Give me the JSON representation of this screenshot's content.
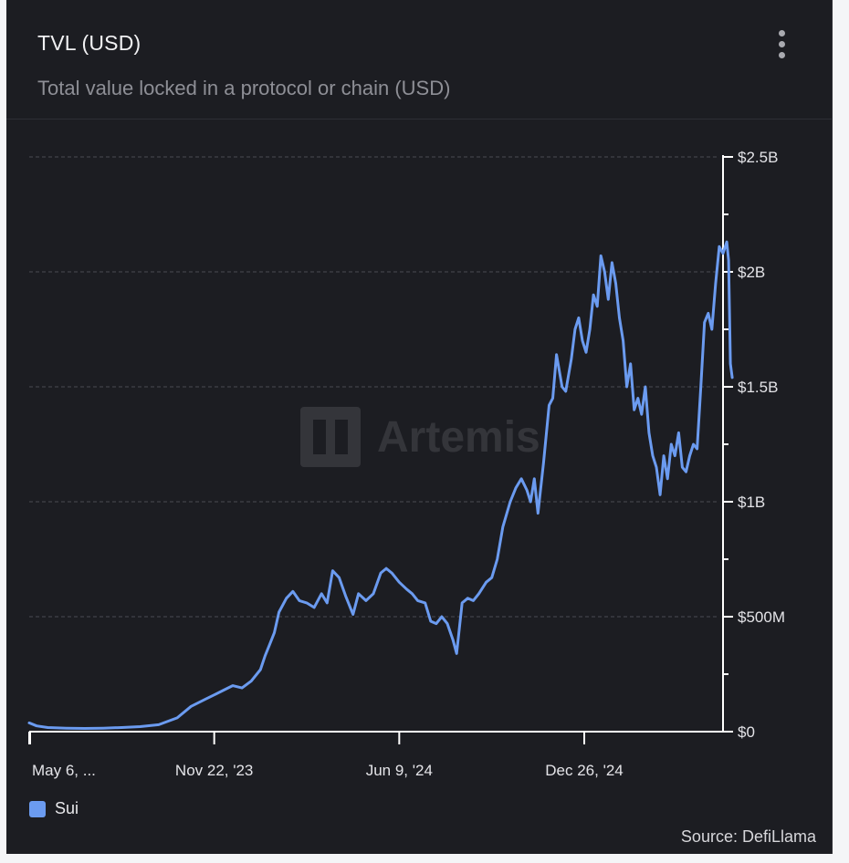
{
  "header": {
    "title": "TVL (USD)",
    "subtitle": "Total value locked in a protocol or chain (USD)"
  },
  "watermark": "Artemis",
  "legend": [
    {
      "label": "Sui",
      "color": "#6b9bf0"
    }
  ],
  "source": "Source: DefiLlama",
  "icons": {
    "menu": "more-vertical-icon"
  },
  "chart_data": {
    "type": "line",
    "title": "TVL (USD)",
    "ylabel": "",
    "xlabel": "",
    "ylim": [
      0,
      2500000000
    ],
    "y_ticks": [
      {
        "value": 0,
        "label": "$0"
      },
      {
        "value": 500000000,
        "label": "$500M"
      },
      {
        "value": 1000000000,
        "label": "$1B"
      },
      {
        "value": 1500000000,
        "label": "$1.5B"
      },
      {
        "value": 2000000000,
        "label": "$2B"
      },
      {
        "value": 2500000000,
        "label": "$2.5B"
      }
    ],
    "x_ticks": [
      {
        "index": 0,
        "label": "May 6, ..."
      },
      {
        "index": 200,
        "label": "Nov 22, '23"
      },
      {
        "index": 400,
        "label": "Jun 9, '24"
      },
      {
        "index": 600,
        "label": "Dec 26, '24"
      }
    ],
    "x_count": 750,
    "grid": true,
    "legend_position": "bottom-left",
    "series": [
      {
        "name": "Sui",
        "color": "#6b9bf0",
        "points": [
          [
            0,
            38000000
          ],
          [
            8,
            25000000
          ],
          [
            20,
            18000000
          ],
          [
            40,
            15000000
          ],
          [
            60,
            14000000
          ],
          [
            80,
            15000000
          ],
          [
            100,
            18000000
          ],
          [
            120,
            22000000
          ],
          [
            140,
            30000000
          ],
          [
            160,
            60000000
          ],
          [
            175,
            110000000
          ],
          [
            190,
            140000000
          ],
          [
            200,
            160000000
          ],
          [
            210,
            180000000
          ],
          [
            220,
            200000000
          ],
          [
            230,
            190000000
          ],
          [
            240,
            220000000
          ],
          [
            250,
            270000000
          ],
          [
            255,
            330000000
          ],
          [
            260,
            380000000
          ],
          [
            265,
            430000000
          ],
          [
            270,
            520000000
          ],
          [
            278,
            580000000
          ],
          [
            285,
            610000000
          ],
          [
            292,
            570000000
          ],
          [
            300,
            560000000
          ],
          [
            308,
            540000000
          ],
          [
            316,
            600000000
          ],
          [
            322,
            560000000
          ],
          [
            328,
            700000000
          ],
          [
            335,
            670000000
          ],
          [
            342,
            590000000
          ],
          [
            350,
            510000000
          ],
          [
            356,
            600000000
          ],
          [
            364,
            570000000
          ],
          [
            372,
            600000000
          ],
          [
            380,
            690000000
          ],
          [
            386,
            710000000
          ],
          [
            392,
            690000000
          ],
          [
            400,
            650000000
          ],
          [
            408,
            620000000
          ],
          [
            414,
            600000000
          ],
          [
            420,
            570000000
          ],
          [
            428,
            560000000
          ],
          [
            434,
            480000000
          ],
          [
            440,
            470000000
          ],
          [
            446,
            500000000
          ],
          [
            452,
            470000000
          ],
          [
            458,
            400000000
          ],
          [
            462,
            340000000
          ],
          [
            468,
            560000000
          ],
          [
            474,
            580000000
          ],
          [
            480,
            570000000
          ],
          [
            486,
            600000000
          ],
          [
            494,
            650000000
          ],
          [
            500,
            670000000
          ],
          [
            506,
            750000000
          ],
          [
            512,
            890000000
          ],
          [
            520,
            1000000000
          ],
          [
            526,
            1060000000
          ],
          [
            532,
            1100000000
          ],
          [
            538,
            1050000000
          ],
          [
            542,
            1000000000
          ],
          [
            546,
            1100000000
          ],
          [
            550,
            950000000
          ],
          [
            556,
            1170000000
          ],
          [
            562,
            1420000000
          ],
          [
            566,
            1450000000
          ],
          [
            570,
            1640000000
          ],
          [
            576,
            1500000000
          ],
          [
            580,
            1480000000
          ],
          [
            586,
            1620000000
          ],
          [
            590,
            1750000000
          ],
          [
            594,
            1800000000
          ],
          [
            598,
            1700000000
          ],
          [
            602,
            1650000000
          ],
          [
            606,
            1750000000
          ],
          [
            610,
            1900000000
          ],
          [
            614,
            1850000000
          ],
          [
            618,
            2070000000
          ],
          [
            622,
            2000000000
          ],
          [
            626,
            1880000000
          ],
          [
            630,
            2040000000
          ],
          [
            634,
            1950000000
          ],
          [
            638,
            1800000000
          ],
          [
            642,
            1700000000
          ],
          [
            646,
            1500000000
          ],
          [
            650,
            1600000000
          ],
          [
            654,
            1400000000
          ],
          [
            658,
            1450000000
          ],
          [
            662,
            1380000000
          ],
          [
            666,
            1500000000
          ],
          [
            670,
            1300000000
          ],
          [
            674,
            1200000000
          ],
          [
            678,
            1150000000
          ],
          [
            682,
            1030000000
          ],
          [
            686,
            1200000000
          ],
          [
            690,
            1100000000
          ],
          [
            694,
            1250000000
          ],
          [
            698,
            1200000000
          ],
          [
            702,
            1300000000
          ],
          [
            706,
            1150000000
          ],
          [
            710,
            1130000000
          ],
          [
            714,
            1200000000
          ],
          [
            718,
            1250000000
          ],
          [
            722,
            1230000000
          ],
          [
            726,
            1500000000
          ],
          [
            730,
            1780000000
          ],
          [
            734,
            1820000000
          ],
          [
            738,
            1750000000
          ],
          [
            742,
            1950000000
          ],
          [
            746,
            2110000000
          ],
          [
            750,
            2080000000
          ],
          [
            754,
            2130000000
          ],
          [
            756,
            2050000000
          ],
          [
            758,
            1600000000
          ],
          [
            760,
            1540000000
          ]
        ]
      }
    ]
  }
}
